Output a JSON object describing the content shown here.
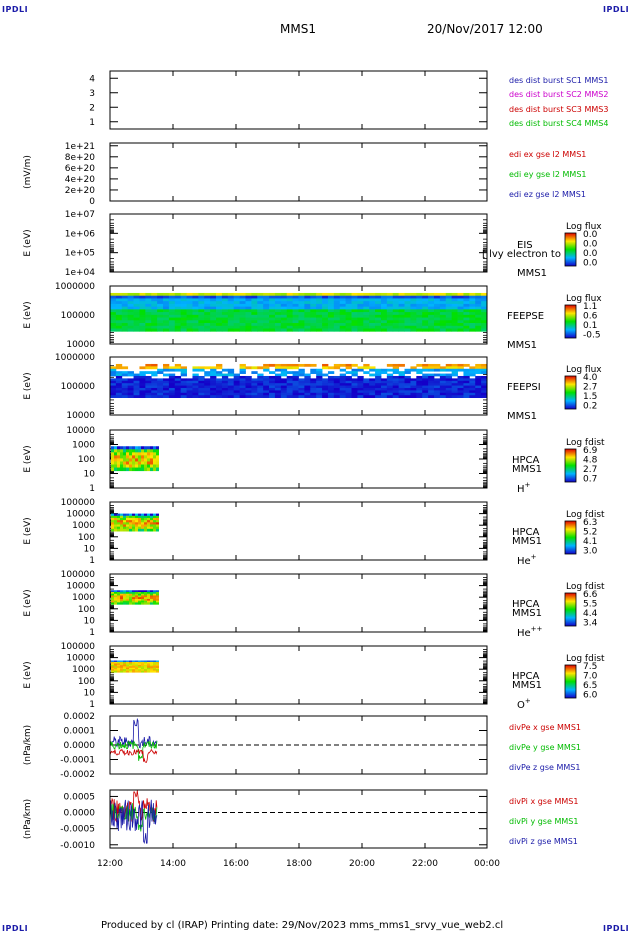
{
  "corner_label": "IPDLI",
  "header": {
    "spacecraft": "MMS1",
    "datetime": "20/Nov/2017 12:00"
  },
  "footer": "Produced by cl (IRAP)   Printing date: 29/Nov/2023   mms_mms1_srvy_vue_web2.cl",
  "x_axis": {
    "ticks": [
      "12:00",
      "14:00",
      "16:00",
      "18:00",
      "20:00",
      "22:00",
      "00:00"
    ]
  },
  "chart_data": [
    {
      "type": "line",
      "yticks": [
        "4",
        "3",
        "2",
        "1"
      ],
      "ylim": [
        0.5,
        4.5
      ],
      "legend": [
        {
          "label": "des dist burst SC1 MMS1",
          "color": "#1a1aa8"
        },
        {
          "label": "des dist burst SC2 MMS2",
          "color": "#cc00cc"
        },
        {
          "label": "des dist burst SC3 MMS3",
          "color": "#cc0000"
        },
        {
          "label": "des dist burst SC4 MMS4",
          "color": "#00bb00"
        }
      ],
      "series": []
    },
    {
      "type": "line",
      "ylabel": "(mV/m)",
      "yticks": [
        "1e+21",
        "8e+20",
        "6e+20",
        "4e+20",
        "2e+20",
        "0"
      ],
      "ylim": [
        0,
        1.05e+21
      ],
      "reference_line": 0,
      "legend": [
        {
          "label": "edi ex gse l2 MMS1",
          "color": "#cc0000"
        },
        {
          "label": "edi ey gse l2 MMS1",
          "color": "#00bb00"
        },
        {
          "label": "edi ez gse l2 MMS1",
          "color": "#1a1aa8"
        }
      ],
      "series": []
    },
    {
      "type": "heatmap",
      "ylabel": "E (eV)",
      "yticks": [
        "1e+07",
        "1e+06",
        "1e+05",
        "1e+04"
      ],
      "scale": "log",
      "labels": [
        "EIS",
        "MMS1"
      ],
      "overlay_text": "[ lvy electron to",
      "colorbar": {
        "title": "Log flux",
        "ticks": [
          "0.0",
          "0.0",
          "0.0",
          "0.0"
        ]
      },
      "coverage": []
    },
    {
      "type": "heatmap",
      "ylabel": "E (eV)",
      "yticks": [
        "1000000",
        "100000",
        "10000"
      ],
      "scale": "log",
      "labels": [
        "FEEPSE",
        "MMS1"
      ],
      "colorbar": {
        "title": "Log flux",
        "ticks": [
          "1.1",
          "0.6",
          "0.1",
          "-0.5"
        ]
      },
      "coverage": [
        {
          "start": "12:00",
          "end": "00:00"
        }
      ]
    },
    {
      "type": "heatmap",
      "ylabel": "E (eV)",
      "yticks": [
        "1000000",
        "100000",
        "10000"
      ],
      "scale": "log",
      "labels": [
        "FEEPSI",
        "MMS1"
      ],
      "colorbar": {
        "title": "Log flux",
        "ticks": [
          "4.0",
          "2.7",
          "1.5",
          "0.2"
        ]
      },
      "coverage": [
        {
          "start": "12:00",
          "end": "00:00"
        }
      ]
    },
    {
      "type": "heatmap",
      "ylabel": "E (eV)",
      "yticks": [
        "10000",
        "1000",
        "100",
        "10",
        "1"
      ],
      "scale": "log",
      "labels": [
        "HPCA",
        "MMS1"
      ],
      "species": "H",
      "species_sup": "+",
      "colorbar": {
        "title": "Log fdist",
        "ticks": [
          "6.9",
          "4.8",
          "2.7",
          "0.7"
        ]
      },
      "coverage": [
        {
          "start": "12:00",
          "end": "13:30"
        }
      ]
    },
    {
      "type": "heatmap",
      "ylabel": "E (eV)",
      "yticks": [
        "100000",
        "10000",
        "1000",
        "100",
        "10",
        "1"
      ],
      "scale": "log",
      "labels": [
        "HPCA",
        "MMS1"
      ],
      "species": "He",
      "species_sup": "+",
      "colorbar": {
        "title": "Log fdist",
        "ticks": [
          "6.3",
          "5.2",
          "4.1",
          "3.0"
        ]
      },
      "coverage": [
        {
          "start": "12:00",
          "end": "13:30"
        }
      ]
    },
    {
      "type": "heatmap",
      "ylabel": "E (eV)",
      "yticks": [
        "100000",
        "10000",
        "1000",
        "100",
        "10",
        "1"
      ],
      "scale": "log",
      "labels": [
        "HPCA",
        "MMS1"
      ],
      "species": "He",
      "species_sup": "++",
      "colorbar": {
        "title": "Log fdist",
        "ticks": [
          "6.6",
          "5.5",
          "4.4",
          "3.4"
        ]
      },
      "coverage": [
        {
          "start": "12:00",
          "end": "13:30"
        }
      ]
    },
    {
      "type": "heatmap",
      "ylabel": "E (eV)",
      "yticks": [
        "100000",
        "10000",
        "1000",
        "100",
        "10",
        "1"
      ],
      "scale": "log",
      "labels": [
        "HPCA",
        "MMS1"
      ],
      "species": "O",
      "species_sup": "+",
      "colorbar": {
        "title": "Log fdist",
        "ticks": [
          "7.5",
          "7.0",
          "6.5",
          "6.0"
        ]
      },
      "coverage": [
        {
          "start": "12:00",
          "end": "13:30"
        }
      ]
    },
    {
      "type": "line",
      "ylabel": "(nPa/km)",
      "yticks": [
        "0.0002",
        "0.0001",
        "0.0000",
        "-0.0001",
        "-0.0002"
      ],
      "ylim": [
        -0.0002,
        0.0002
      ],
      "reference_line": 0,
      "legend": [
        {
          "label": "divPe x gse MMS1",
          "color": "#cc0000"
        },
        {
          "label": "divPe y gse MMS1",
          "color": "#00bb00"
        },
        {
          "label": "divPe z gse MMS1",
          "color": "#1a1aa8"
        }
      ],
      "series": [
        {
          "color": "#1a1aa8",
          "start": "12:00",
          "end": "13:30",
          "center": 2e-05,
          "amp": 4e-05,
          "spike": 0.00017
        },
        {
          "color": "#00bb00",
          "start": "12:00",
          "end": "13:30",
          "center": 0.0,
          "amp": 3e-05,
          "spike": -0.00011
        },
        {
          "color": "#cc0000",
          "start": "12:00",
          "end": "13:30",
          "center": -5e-05,
          "amp": 2e-05,
          "spike": -7e-05
        }
      ]
    },
    {
      "type": "line",
      "ylabel": "(nPa/km)",
      "yticks": [
        "0.0005",
        "0.0000",
        "-0.0005",
        "-0.0010"
      ],
      "ylim": [
        -0.0011,
        0.0007
      ],
      "reference_line": 0,
      "legend": [
        {
          "label": "divPi x gse MMS1",
          "color": "#cc0000"
        },
        {
          "label": "divPi y gse MMS1",
          "color": "#00bb00"
        },
        {
          "label": "divPi z gse MMS1",
          "color": "#1a1aa8"
        }
      ],
      "series": [
        {
          "color": "#cc0000",
          "start": "12:00",
          "end": "13:30",
          "center": 0.0001,
          "amp": 0.0004,
          "spike": 0.0006
        },
        {
          "color": "#00bb00",
          "start": "12:00",
          "end": "13:30",
          "center": 0.0,
          "amp": 0.0003,
          "spike": -0.0006
        },
        {
          "color": "#1a1aa8",
          "start": "12:00",
          "end": "13:30",
          "center": -0.0001,
          "amp": 0.0005,
          "spike": -0.0009
        }
      ]
    }
  ]
}
